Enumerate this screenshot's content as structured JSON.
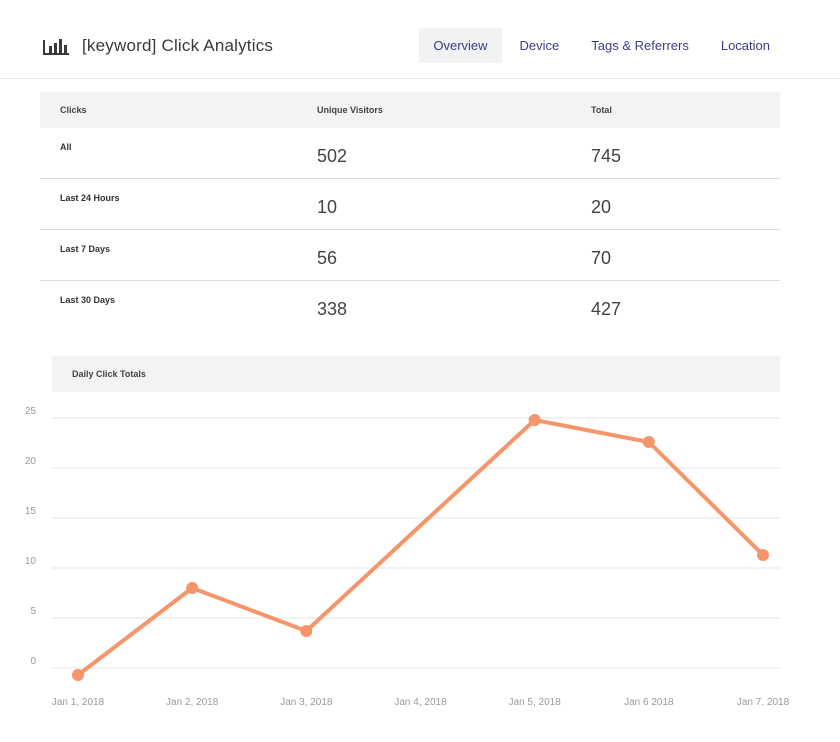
{
  "header": {
    "title": "[keyword] Click Analytics",
    "icon": "bar-chart-icon",
    "tabs": [
      {
        "label": "Overview",
        "active": true
      },
      {
        "label": "Device",
        "active": false
      },
      {
        "label": "Tags & Referrers",
        "active": false
      },
      {
        "label": "Location",
        "active": false
      }
    ]
  },
  "stats": {
    "columns": [
      "Clicks",
      "Unique Visitors",
      "Total"
    ],
    "rows": [
      {
        "label": "All",
        "unique_visitors": "502",
        "total": "745"
      },
      {
        "label": "Last 24 Hours",
        "unique_visitors": "10",
        "total": "20"
      },
      {
        "label": "Last 7 Days",
        "unique_visitors": "56",
        "total": "70"
      },
      {
        "label": "Last 30 Days",
        "unique_visitors": "338",
        "total": "427"
      }
    ]
  },
  "chart_section": {
    "title": "Daily Click Totals"
  },
  "colors": {
    "accent": "#3f3b8c",
    "line": "#f4956a",
    "grid": "#e6e6e6"
  },
  "chart_data": {
    "type": "line",
    "title": "Daily Click Totals",
    "xlabel": "",
    "ylabel": "",
    "categories": [
      "Jan 1, 2018",
      "Jan 2, 2018",
      "Jan 3, 2018",
      "Jan 4, 2018",
      "Jan 5, 2018",
      "Jan 6 2018",
      "Jan 7, 2018"
    ],
    "points": [
      {
        "x": "Jan 1, 2018",
        "y": -0.7
      },
      {
        "x": "Jan 2, 2018",
        "y": 8
      },
      {
        "x": "Jan 3, 2018",
        "y": 3.7
      },
      {
        "x": "Jan 5, 2018",
        "y": 24.8
      },
      {
        "x": "Jan 6 2018",
        "y": 22.6
      },
      {
        "x": "Jan 7, 2018",
        "y": 11.3
      }
    ],
    "yticks": [
      0,
      5,
      10,
      15,
      20,
      25
    ],
    "ylim": [
      0,
      25
    ],
    "grid": true,
    "legend": false
  }
}
